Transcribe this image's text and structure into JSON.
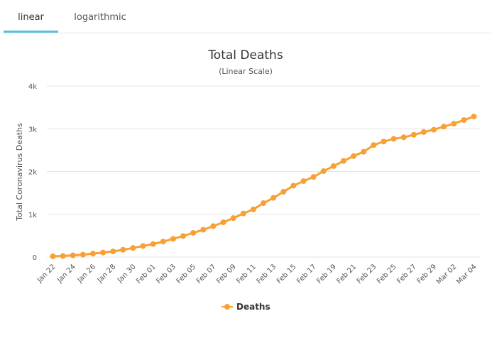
{
  "tabs": [
    {
      "label": "linear",
      "active": true
    },
    {
      "label": "logarithmic",
      "active": false
    }
  ],
  "colors": {
    "series": "#f7a035",
    "tab_underline": "#5bc0de",
    "grid": "#e6e6e6"
  },
  "chart_data": {
    "type": "line",
    "title": "Total Deaths",
    "subtitle": "(Linear Scale)",
    "ylabel": "Total Coronavirus Deaths",
    "xlabel": "",
    "ylim": [
      0,
      4000
    ],
    "yticks": [
      "0",
      "1k",
      "2k",
      "3k",
      "4k"
    ],
    "yticks_values": [
      0,
      1000,
      2000,
      3000,
      4000
    ],
    "grid": true,
    "legend": "bottom-center",
    "x": [
      "Jan 22",
      "Jan 23",
      "Jan 24",
      "Jan 25",
      "Jan 26",
      "Jan 27",
      "Jan 28",
      "Jan 29",
      "Jan 30",
      "Jan 31",
      "Feb 01",
      "Feb 02",
      "Feb 03",
      "Feb 04",
      "Feb 05",
      "Feb 06",
      "Feb 07",
      "Feb 08",
      "Feb 09",
      "Feb 10",
      "Feb 11",
      "Feb 12",
      "Feb 13",
      "Feb 14",
      "Feb 15",
      "Feb 16",
      "Feb 17",
      "Feb 18",
      "Feb 19",
      "Feb 20",
      "Feb 21",
      "Feb 22",
      "Feb 23",
      "Feb 24",
      "Feb 25",
      "Feb 26",
      "Feb 27",
      "Feb 28",
      "Feb 29",
      "Mar 01",
      "Mar 02",
      "Mar 03",
      "Mar 04"
    ],
    "xticks": [
      "Jan 22",
      "Jan 24",
      "Jan 26",
      "Jan 28",
      "Jan 30",
      "Feb 01",
      "Feb 03",
      "Feb 05",
      "Feb 07",
      "Feb 09",
      "Feb 11",
      "Feb 13",
      "Feb 15",
      "Feb 17",
      "Feb 19",
      "Feb 21",
      "Feb 23",
      "Feb 25",
      "Feb 27",
      "Feb 29",
      "Mar 02",
      "Mar 04"
    ],
    "series": [
      {
        "name": "Deaths",
        "values": [
          17,
          25,
          41,
          56,
          80,
          106,
          132,
          170,
          213,
          259,
          304,
          362,
          426,
          492,
          565,
          638,
          724,
          813,
          910,
          1018,
          1115,
          1261,
          1383,
          1526,
          1669,
          1775,
          1873,
          2009,
          2126,
          2247,
          2360,
          2460,
          2618,
          2699,
          2763,
          2800,
          2858,
          2923,
          2977,
          3050,
          3117,
          3202,
          3285
        ]
      }
    ]
  }
}
